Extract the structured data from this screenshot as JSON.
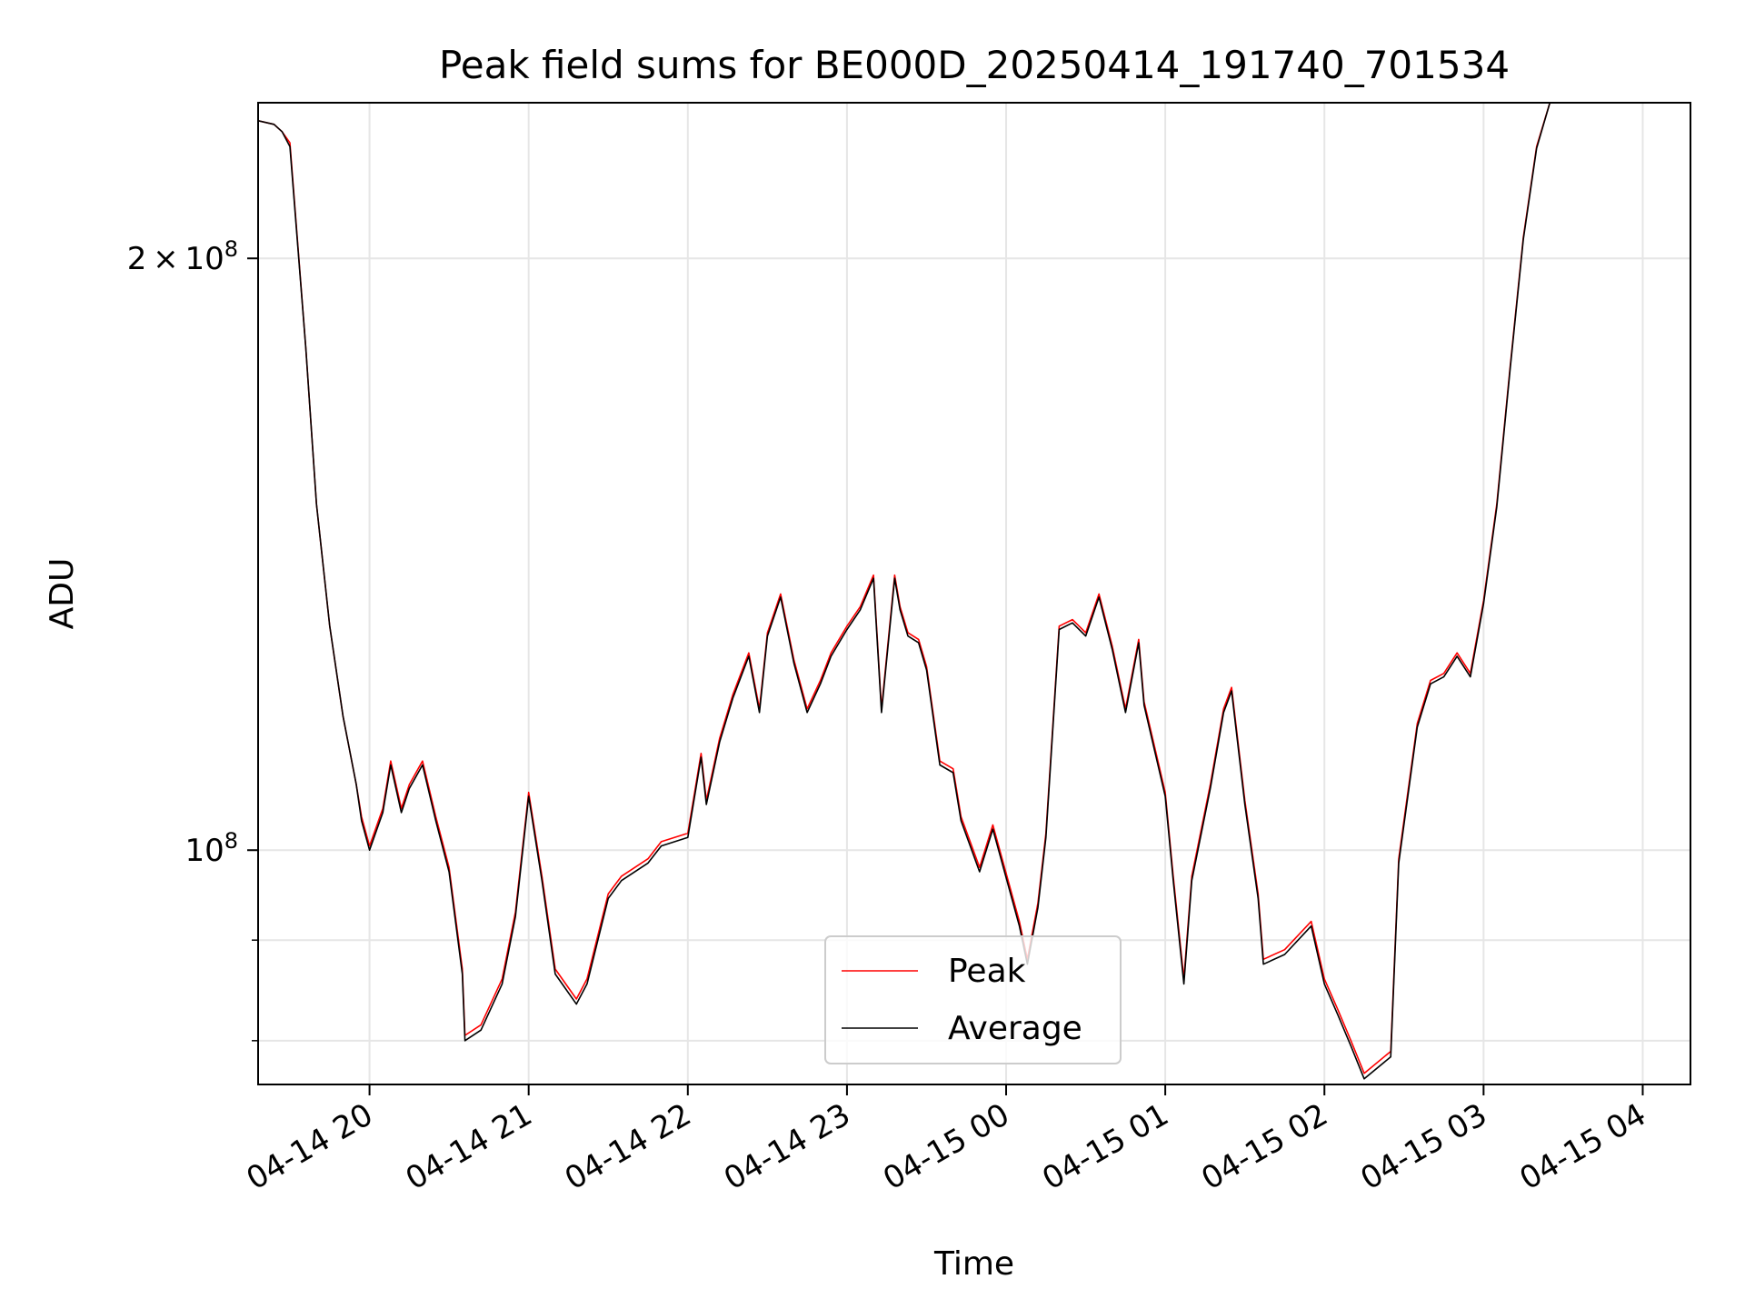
{
  "chart_data": {
    "type": "line",
    "title": "Peak field sums for BE000D_20250414_191740_701534",
    "xlabel": "Time",
    "ylabel": "ADU",
    "yscale": "log",
    "ylim": [
      76000000,
      240000000
    ],
    "xlim": [
      "2025-04-14 19:18",
      "2025-04-15 04:18"
    ],
    "grid": true,
    "legend": "lower center",
    "x_ticks": [
      {
        "t": "2025-04-14 20:00",
        "label": "04-14 20"
      },
      {
        "t": "2025-04-14 21:00",
        "label": "04-14 21"
      },
      {
        "t": "2025-04-14 22:00",
        "label": "04-14 22"
      },
      {
        "t": "2025-04-14 23:00",
        "label": "04-14 23"
      },
      {
        "t": "2025-04-15 00:00",
        "label": "04-15 00"
      },
      {
        "t": "2025-04-15 01:00",
        "label": "04-15 01"
      },
      {
        "t": "2025-04-15 02:00",
        "label": "04-15 02"
      },
      {
        "t": "2025-04-15 03:00",
        "label": "04-15 03"
      },
      {
        "t": "2025-04-15 04:00",
        "label": "04-15 04"
      }
    ],
    "y_ticks": [
      {
        "v": 200000000,
        "base": "2",
        "exp": "8",
        "mult": true
      },
      {
        "v": 100000000,
        "base": "10",
        "exp": "8",
        "mult": false
      }
    ],
    "y_minor_ticks": [
      90000000,
      80000000
    ],
    "x": [
      "2025-04-14 19:18",
      "2025-04-14 19:24",
      "2025-04-14 19:27",
      "2025-04-14 19:30",
      "2025-04-14 19:36",
      "2025-04-14 19:40",
      "2025-04-14 19:45",
      "2025-04-14 19:50",
      "2025-04-14 19:55",
      "2025-04-14 19:57",
      "2025-04-14 20:00",
      "2025-04-14 20:05",
      "2025-04-14 20:08",
      "2025-04-14 20:12",
      "2025-04-14 20:15",
      "2025-04-14 20:20",
      "2025-04-14 20:25",
      "2025-04-14 20:30",
      "2025-04-14 20:35",
      "2025-04-14 20:36",
      "2025-04-14 20:42",
      "2025-04-14 20:50",
      "2025-04-14 20:55",
      "2025-04-14 21:00",
      "2025-04-14 21:05",
      "2025-04-14 21:10",
      "2025-04-14 21:18",
      "2025-04-14 21:22",
      "2025-04-14 21:30",
      "2025-04-14 21:35",
      "2025-04-14 21:45",
      "2025-04-14 21:50",
      "2025-04-14 22:00",
      "2025-04-14 22:05",
      "2025-04-14 22:07",
      "2025-04-14 22:12",
      "2025-04-14 22:17",
      "2025-04-14 22:23",
      "2025-04-14 22:27",
      "2025-04-14 22:30",
      "2025-04-14 22:35",
      "2025-04-14 22:40",
      "2025-04-14 22:45",
      "2025-04-14 22:50",
      "2025-04-14 22:54",
      "2025-04-14 23:00",
      "2025-04-14 23:05",
      "2025-04-14 23:10",
      "2025-04-14 23:13",
      "2025-04-14 23:18",
      "2025-04-14 23:20",
      "2025-04-14 23:23",
      "2025-04-14 23:27",
      "2025-04-14 23:30",
      "2025-04-14 23:35",
      "2025-04-14 23:40",
      "2025-04-14 23:43",
      "2025-04-14 23:50",
      "2025-04-14 23:55",
      "2025-04-15 00:05",
      "2025-04-15 00:08",
      "2025-04-15 00:12",
      "2025-04-15 00:15",
      "2025-04-15 00:20",
      "2025-04-15 00:25",
      "2025-04-15 00:30",
      "2025-04-15 00:35",
      "2025-04-15 00:40",
      "2025-04-15 00:45",
      "2025-04-15 00:50",
      "2025-04-15 00:52",
      "2025-04-15 01:00",
      "2025-04-15 01:03",
      "2025-04-15 01:07",
      "2025-04-15 01:10",
      "2025-04-15 01:17",
      "2025-04-15 01:22",
      "2025-04-15 01:25",
      "2025-04-15 01:30",
      "2025-04-15 01:35",
      "2025-04-15 01:37",
      "2025-04-15 01:45",
      "2025-04-15 01:55",
      "2025-04-15 02:00",
      "2025-04-15 02:05",
      "2025-04-15 02:10",
      "2025-04-15 02:15",
      "2025-04-15 02:25",
      "2025-04-15 02:28",
      "2025-04-15 02:35",
      "2025-04-15 02:40",
      "2025-04-15 02:45",
      "2025-04-15 02:50",
      "2025-04-15 02:55",
      "2025-04-15 03:00",
      "2025-04-15 03:05",
      "2025-04-15 03:10",
      "2025-04-15 03:15",
      "2025-04-15 03:20",
      "2025-04-15 03:25",
      "2025-04-15 03:30",
      "2025-04-15 03:35",
      "2025-04-15 03:40",
      "2025-04-15 03:45",
      "2025-04-15 03:50",
      "2025-04-15 03:55",
      "2025-04-15 04:00",
      "2025-04-15 04:08",
      "2025-04-15 04:12",
      "2025-04-15 04:16",
      "2025-04-15 04:18"
    ],
    "series": [
      {
        "name": "Peak",
        "color": "#ff0000",
        "values": [
          235000000,
          234000000,
          232000000,
          229000000,
          180000000,
          150000000,
          130000000,
          117000000,
          108000000,
          104000000,
          100500000,
          105000000,
          111000000,
          105000000,
          108000000,
          111000000,
          104000000,
          98000000,
          87000000,
          80500000,
          81500000,
          86000000,
          93000000,
          107000000,
          97000000,
          87000000,
          84000000,
          86000000,
          95000000,
          97000000,
          99000000,
          101000000,
          102000000,
          112000000,
          106000000,
          114000000,
          120000000,
          126000000,
          118000000,
          129000000,
          135000000,
          125000000,
          118000000,
          122000000,
          126000000,
          130000000,
          133000000,
          138000000,
          118000000,
          138000000,
          133000000,
          129000000,
          128000000,
          124000000,
          111000000,
          110000000,
          104000000,
          98000000,
          103000000,
          92000000,
          88000000,
          94000000,
          102000000,
          130000000,
          131000000,
          129000000,
          135000000,
          127000000,
          118000000,
          128000000,
          119000000,
          107000000,
          97000000,
          86000000,
          97000000,
          108000000,
          118000000,
          121000000,
          106000000,
          95000000,
          88000000,
          89000000,
          92000000,
          86000000,
          83000000,
          80000000,
          77000000,
          79000000,
          99000000,
          116000000,
          122000000,
          123000000,
          126000000,
          123000000,
          134000000,
          150000000,
          176000000,
          205000000,
          228000000,
          240000000,
          240000000,
          240000000,
          240000000,
          240000000,
          240000000,
          240000000,
          240000000,
          240000000,
          240000000,
          240000000,
          240000000
        ]
      },
      {
        "name": "Average",
        "color": "#000000",
        "values": [
          235000000,
          234000000,
          232000000,
          228000000,
          180000000,
          150000000,
          130000000,
          117000000,
          108000000,
          103500000,
          100000000,
          104500000,
          110500000,
          104500000,
          107500000,
          110500000,
          103500000,
          97500000,
          86500000,
          80000000,
          81000000,
          85500000,
          92500000,
          106500000,
          96500000,
          86500000,
          83500000,
          85500000,
          94500000,
          96500000,
          98500000,
          100500000,
          101500000,
          111500000,
          105500000,
          113500000,
          119500000,
          125500000,
          117500000,
          128500000,
          134500000,
          124500000,
          117500000,
          121500000,
          125500000,
          129500000,
          132500000,
          137500000,
          117500000,
          137500000,
          132500000,
          128500000,
          127500000,
          123500000,
          110500000,
          109500000,
          103500000,
          97500000,
          102500000,
          91500000,
          87500000,
          93500000,
          101500000,
          129500000,
          130500000,
          128500000,
          134500000,
          126500000,
          117500000,
          127500000,
          118500000,
          106500000,
          96500000,
          85500000,
          96500000,
          107500000,
          117500000,
          120500000,
          105500000,
          94500000,
          87500000,
          88500000,
          91500000,
          85500000,
          82500000,
          79500000,
          76500000,
          78500000,
          98500000,
          115500000,
          121500000,
          122500000,
          125500000,
          122500000,
          133500000,
          149500000,
          175500000,
          204500000,
          227500000,
          240000000,
          240000000,
          240000000,
          240000000,
          240000000,
          240000000,
          240000000,
          240000000,
          240000000,
          240000000,
          240000000,
          240000000
        ]
      }
    ]
  }
}
